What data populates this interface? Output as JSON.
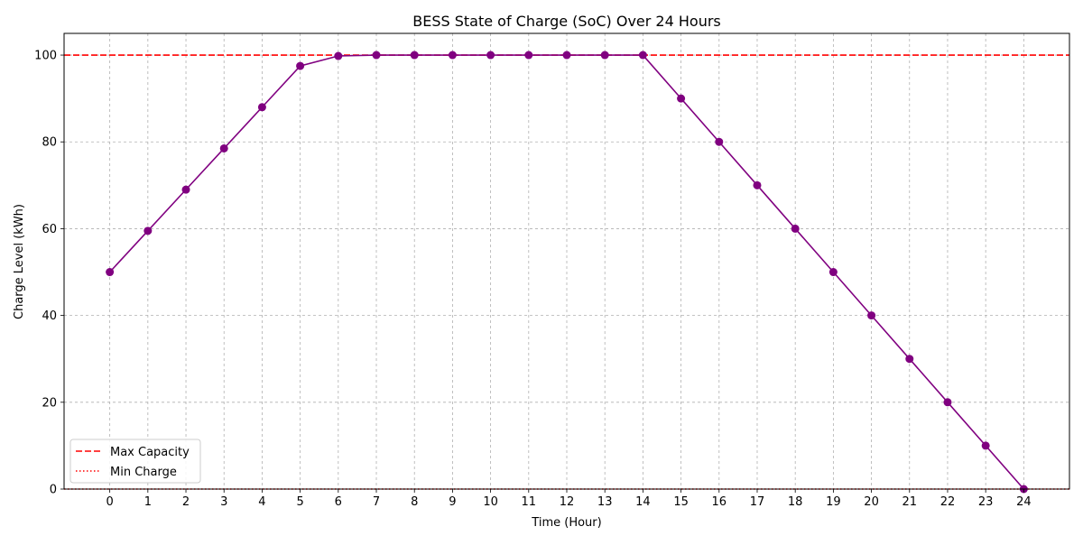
{
  "chart_data": {
    "type": "line",
    "title": "BESS State of Charge (SoC) Over 24 Hours",
    "xlabel": "Time (Hour)",
    "ylabel": "Charge Level (kWh)",
    "xlim": [
      -1.2,
      25.2
    ],
    "ylim": [
      0,
      105
    ],
    "x_ticks": [
      0,
      1,
      2,
      3,
      4,
      5,
      6,
      7,
      8,
      9,
      10,
      11,
      12,
      13,
      14,
      15,
      16,
      17,
      18,
      19,
      20,
      21,
      22,
      23,
      24
    ],
    "y_ticks": [
      0,
      20,
      40,
      60,
      80,
      100
    ],
    "grid": true,
    "legend_position": "lower-left",
    "x": [
      0,
      1,
      2,
      3,
      4,
      5,
      6,
      7,
      8,
      9,
      10,
      11,
      12,
      13,
      14,
      15,
      16,
      17,
      18,
      19,
      20,
      21,
      22,
      23,
      24
    ],
    "series": [
      {
        "values": [
          50,
          59.5,
          69,
          78.5,
          88,
          97.5,
          99.8,
          100,
          100,
          100,
          100,
          100,
          100,
          100,
          100,
          90,
          80,
          70,
          60,
          50,
          40,
          30,
          20,
          10,
          0
        ],
        "color": "#800080",
        "marker": "circle"
      }
    ],
    "reference_lines": [
      {
        "name": "Max Capacity",
        "y": 100,
        "color": "#ff0000",
        "style": "dashed"
      },
      {
        "name": "Min Charge",
        "y": 0,
        "color": "#ff0000",
        "style": "dotted"
      }
    ]
  }
}
